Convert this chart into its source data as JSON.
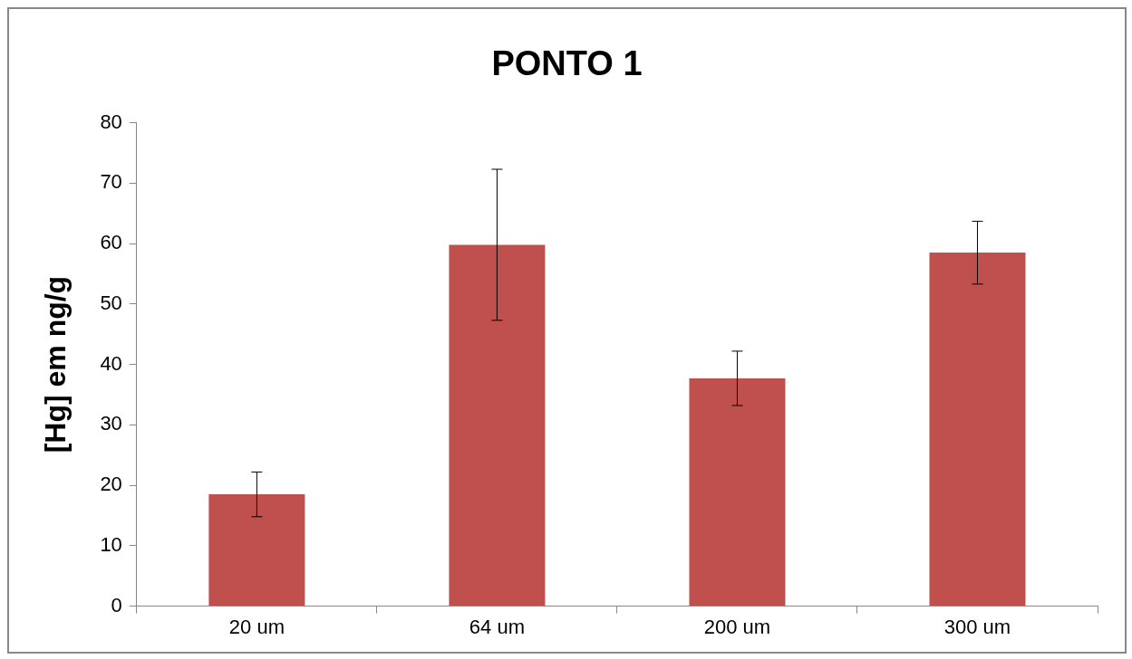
{
  "chart_data": {
    "type": "bar",
    "title": "PONTO 1",
    "ylabel": "[Hg] em ng/g",
    "categories": [
      "20 um",
      "64 um",
      "200 um",
      "300 um"
    ],
    "values": [
      18.5,
      59.8,
      37.7,
      58.5
    ],
    "errors": [
      3.7,
      12.5,
      4.5,
      5.2
    ],
    "color": "#c0504d",
    "ylim": [
      0,
      80
    ],
    "yticks": [
      0,
      10,
      20,
      30,
      40,
      50,
      60,
      70,
      80
    ],
    "grid": false,
    "legend": false
  }
}
